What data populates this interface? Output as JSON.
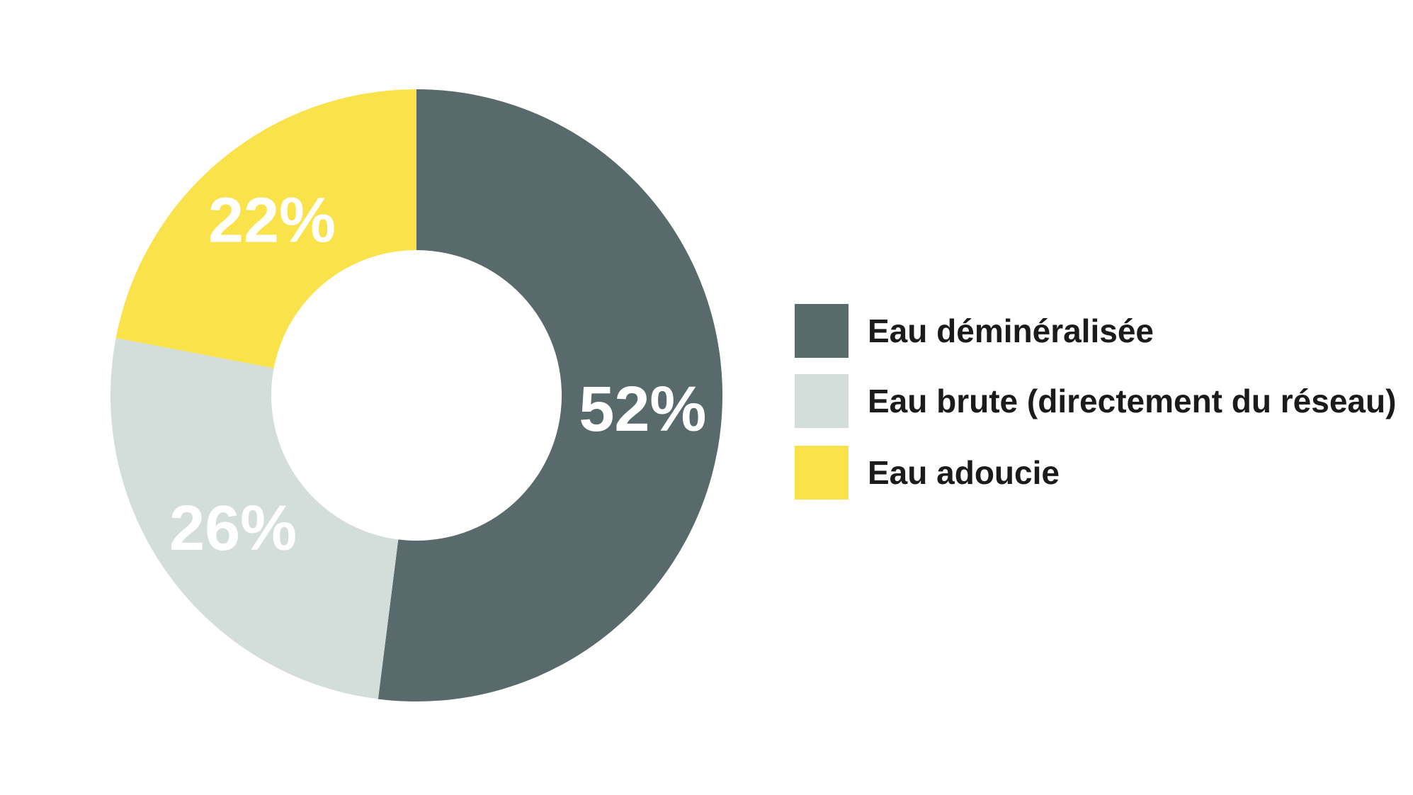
{
  "page": {
    "background": "#FFFFFF"
  },
  "chart_data": {
    "type": "pie",
    "variant": "donut",
    "title": "",
    "unit": "%",
    "direction": "clockwise",
    "start_angle_deg": 0,
    "donut_hole_ratio": 0.475,
    "legend_position": "right",
    "legend_text_color": "#1B1B1B",
    "slices": [
      {
        "label": "Eau déminéralisée",
        "value": 52,
        "data_label": "52%",
        "color": "#586A6B",
        "data_label_color": "#FFFFFF"
      },
      {
        "label": "Eau brute (directement du réseau)",
        "value": 26,
        "data_label": "26%",
        "color": "#D3DEDB",
        "data_label_color": "#FFFFFF"
      },
      {
        "label": "Eau adoucie",
        "value": 22,
        "data_label": "22%",
        "color": "#FAE24B",
        "data_label_color": "#FFFFFF"
      }
    ]
  }
}
